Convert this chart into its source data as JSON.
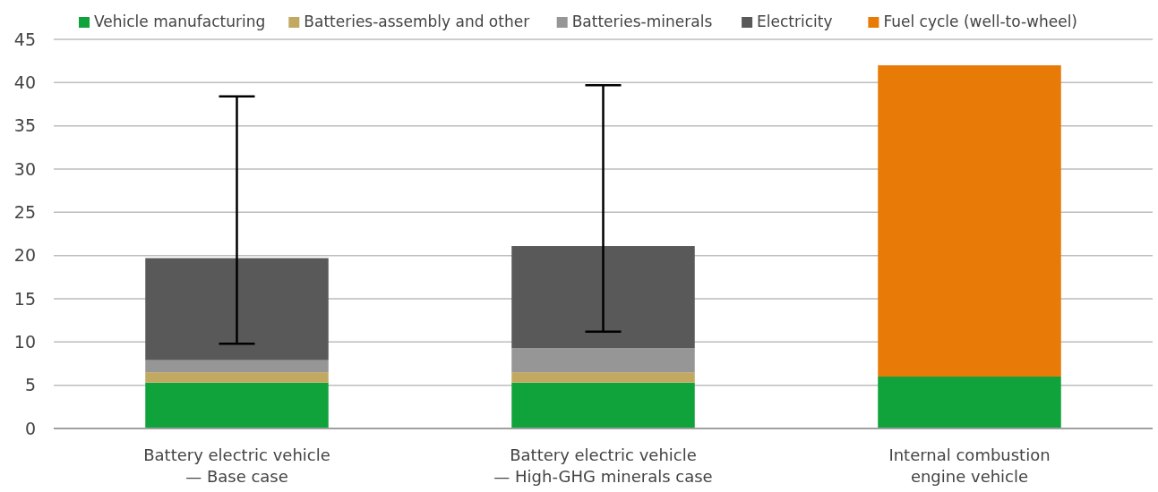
{
  "chart_data": {
    "type": "bar",
    "stacked": true,
    "categories": [
      "Battery electric vehicle\n— Base case",
      "Battery electric vehicle\n— High-GHG minerals case",
      "Internal combustion\nengine vehicle"
    ],
    "series": [
      {
        "name": "Vehicle manufacturing",
        "color": "#10a33c",
        "values": [
          5.3,
          5.3,
          6.0
        ]
      },
      {
        "name": "Batteries-assembly and other",
        "color": "#c1a962",
        "values": [
          1.2,
          1.2,
          0
        ]
      },
      {
        "name": "Batteries-minerals",
        "color": "#969696",
        "values": [
          1.4,
          2.8,
          0
        ]
      },
      {
        "name": "Electricity",
        "color": "#595959",
        "values": [
          11.8,
          11.8,
          0
        ],
        "errors": [
          [
            9.8,
            38.4
          ],
          [
            11.2,
            39.7
          ],
          null
        ]
      },
      {
        "name": "Fuel cycle (well-to-wheel)",
        "color": "#e87a08",
        "values": [
          0,
          0,
          36.0
        ]
      }
    ],
    "ylim": [
      0,
      45
    ],
    "yticks": [
      0,
      5,
      10,
      15,
      20,
      25,
      30,
      35,
      40,
      45
    ],
    "grid": "y",
    "legend": "top"
  }
}
